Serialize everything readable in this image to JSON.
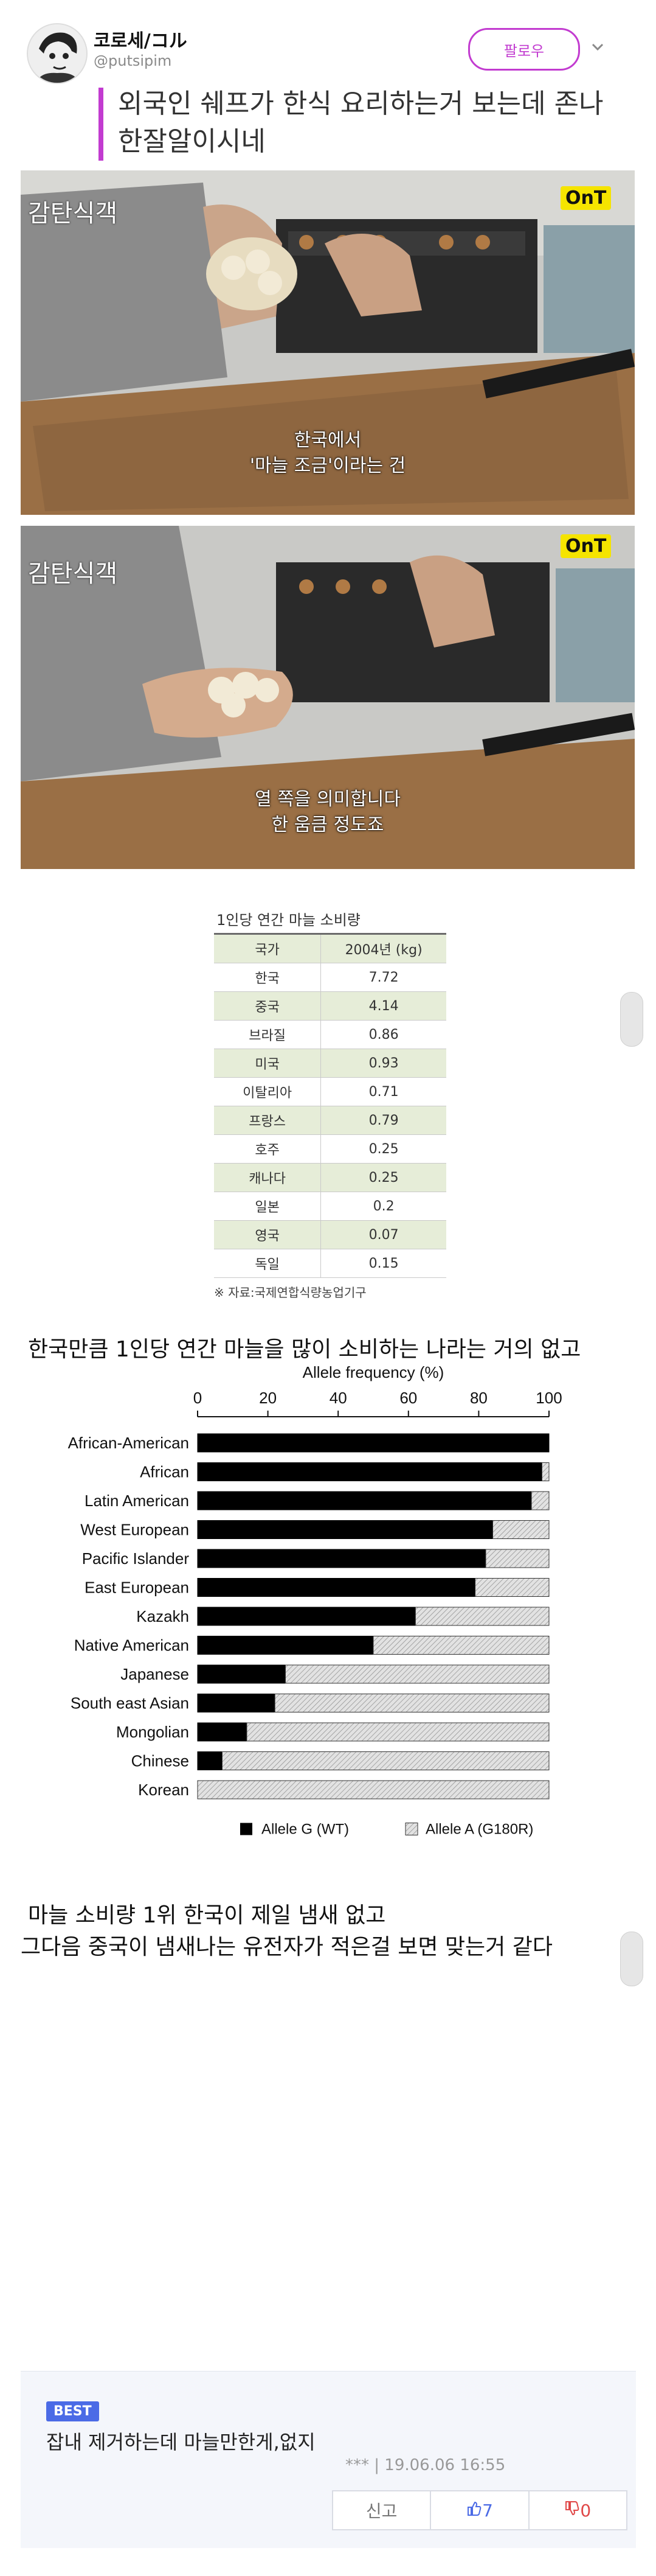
{
  "tweet": {
    "author_name": "코로세/コル",
    "author_handle": "@putsipim",
    "follow_label": "팔로우",
    "text_line1": "외국인 쉐프가 한식 요리하는거 보는데 존나",
    "text_line2": "한잘알이시네"
  },
  "video": {
    "show_logo": "감탄식객",
    "channel_logo": "OnT",
    "frame1_sub1": "한국에서",
    "frame1_sub2": "'마늘 조금'이라는 건",
    "frame2_sub1": "열 쪽을 의미합니다",
    "frame2_sub2": "한 움큼 정도죠"
  },
  "garlic_table": {
    "title": "1인당 연간 마늘 소비량",
    "col_country": "국가",
    "col_value": "2004년 (kg)",
    "rows": [
      {
        "country": "한국",
        "value": "7.72"
      },
      {
        "country": "중국",
        "value": "4.14"
      },
      {
        "country": "브라질",
        "value": "0.86"
      },
      {
        "country": "미국",
        "value": "0.93"
      },
      {
        "country": "이탈리아",
        "value": "0.71"
      },
      {
        "country": "프랑스",
        "value": "0.79"
      },
      {
        "country": "호주",
        "value": "0.25"
      },
      {
        "country": "캐나다",
        "value": "0.25"
      },
      {
        "country": "일본",
        "value": "0.2"
      },
      {
        "country": "영국",
        "value": "0.07"
      },
      {
        "country": "독일",
        "value": "0.15"
      }
    ],
    "source": "※ 자료:국제연합식량농업기구"
  },
  "caption1": "한국만큼 1인당 연간 마늘을 많이 소비하는 나라는 거의 없고",
  "chart_data": {
    "type": "bar",
    "orientation": "horizontal-stacked",
    "title": "Allele frequency (%)",
    "xlim": [
      0,
      100
    ],
    "x_ticks": [
      "0",
      "20",
      "40",
      "60",
      "80",
      "100"
    ],
    "categories": [
      "African-American",
      "African",
      "Latin American",
      "West European",
      "Pacific Islander",
      "East European",
      "Kazakh",
      "Native American",
      "Japanese",
      "South east Asian",
      "Mongolian",
      "Chinese",
      "Korean"
    ],
    "series": [
      {
        "name": "Allele G (WT)",
        "color": "#000000",
        "values": [
          100,
          98,
          95,
          84,
          82,
          79,
          62,
          50,
          25,
          22,
          14,
          7,
          0
        ]
      },
      {
        "name": "Allele A (G180R)",
        "color": "#d0d0d0",
        "values": [
          0,
          2,
          5,
          16,
          18,
          21,
          38,
          50,
          75,
          78,
          86,
          93,
          100
        ]
      }
    ],
    "legend_position": "bottom"
  },
  "caption2": "마늘 소비량 1위 한국이 제일 냄새 없고",
  "caption3": "그다음 중국이 냄새나는 유전자가 적은걸 보면 맞는거 같다",
  "comment": {
    "badge": "BEST",
    "text": "잡내 제거하는데 마늘만한게,없지",
    "meta": "*** | 19.06.06 16:55",
    "report_label": "신고",
    "upvotes": "7",
    "downvotes": "0"
  }
}
